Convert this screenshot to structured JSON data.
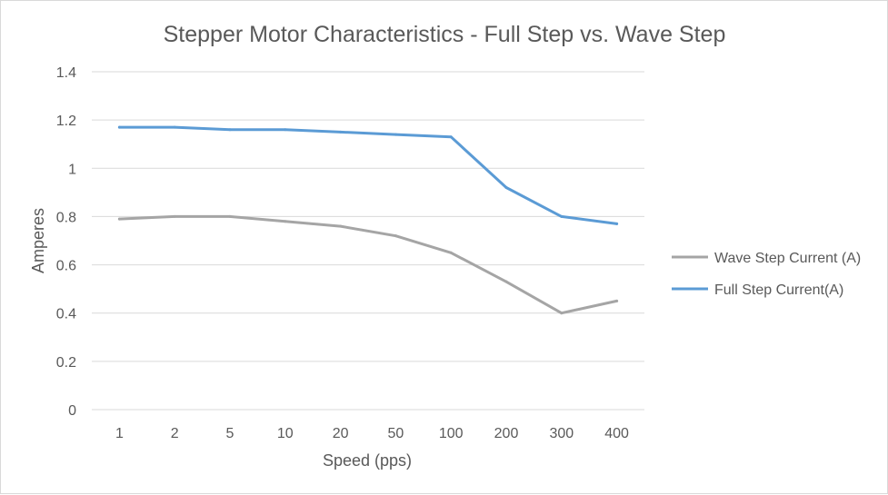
{
  "chart_data": {
    "type": "line",
    "title": "Stepper Motor Characteristics - Full Step vs. Wave Step",
    "xlabel": "Speed (pps)",
    "ylabel": "Amperes",
    "categories": [
      "1",
      "2",
      "5",
      "10",
      "20",
      "50",
      "100",
      "200",
      "300",
      "400"
    ],
    "yticks": [
      "0",
      "0.2",
      "0.4",
      "0.6",
      "0.8",
      "1",
      "1.2",
      "1.4"
    ],
    "ylim": [
      0,
      1.4
    ],
    "grid": true,
    "legend_position": "right",
    "series": [
      {
        "name": "Wave Step Current (A)",
        "color": "#a5a5a5",
        "values": [
          0.79,
          0.8,
          0.8,
          0.78,
          0.76,
          0.72,
          0.65,
          0.53,
          0.4,
          0.45
        ]
      },
      {
        "name": "Full Step Current(A)",
        "color": "#5b9bd5",
        "values": [
          1.17,
          1.17,
          1.16,
          1.16,
          1.15,
          1.14,
          1.13,
          0.92,
          0.8,
          0.77
        ]
      }
    ]
  }
}
